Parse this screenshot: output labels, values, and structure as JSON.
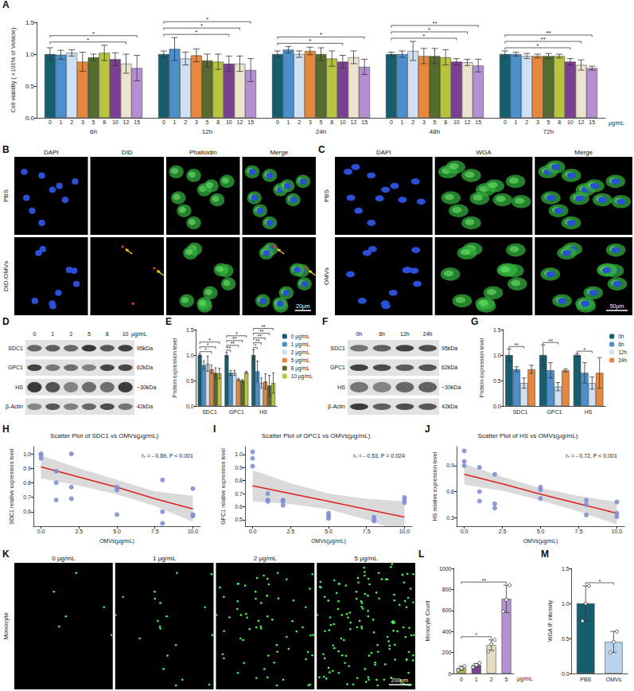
{
  "chart_data": [
    {
      "panel": "A",
      "type": "bar",
      "ylabel": "Cell viability ( ×100% of Vehicle)",
      "categories": [
        "6h",
        "12h",
        "24h",
        "48h",
        "72h"
      ],
      "unit": "μg/mL",
      "ylim": [
        0,
        1.5
      ],
      "yticks": [
        {
          "value": 0,
          "label": "0.0"
        },
        0.5,
        {
          "value": 1,
          "label": "1.0"
        },
        1.5
      ],
      "grid": false,
      "series": [
        {
          "name": "0",
          "color": "#155e6e",
          "values": [
            1.0,
            1.0,
            1.0,
            1.0,
            1.0
          ],
          "errors": [
            0.1,
            0.05,
            0.05,
            0.03,
            0.05
          ]
        },
        {
          "name": "1",
          "color": "#4b8fcc",
          "values": [
            0.99,
            1.08,
            1.07,
            1.0,
            1.0
          ],
          "errors": [
            0.07,
            0.18,
            0.05,
            0.05,
            0.03
          ]
        },
        {
          "name": "2",
          "color": "#cfe0f0",
          "values": [
            1.02,
            0.93,
            1.0,
            1.05,
            0.97
          ],
          "errors": [
            0.05,
            0.1,
            0.05,
            0.15,
            0.04
          ]
        },
        {
          "name": "3",
          "color": "#e8873a",
          "values": [
            0.88,
            0.98,
            1.05,
            0.97,
            0.97
          ],
          "errors": [
            0.15,
            0.1,
            0.06,
            0.12,
            0.03
          ]
        },
        {
          "name": "5",
          "color": "#556b2f",
          "values": [
            0.95,
            0.9,
            1.0,
            0.97,
            0.97
          ],
          "errors": [
            0.05,
            0.1,
            0.1,
            0.12,
            0.04
          ]
        },
        {
          "name": "8",
          "color": "#b8c43c",
          "values": [
            1.02,
            0.88,
            0.93,
            0.95,
            0.97
          ],
          "errors": [
            0.12,
            0.12,
            0.12,
            0.12,
            0.03
          ]
        },
        {
          "name": "10",
          "color": "#7b3f93",
          "values": [
            0.92,
            0.85,
            0.88,
            0.88,
            0.88
          ],
          "errors": [
            0.1,
            0.12,
            0.1,
            0.05,
            0.05
          ]
        },
        {
          "name": "12",
          "color": "#ebe3cc",
          "values": [
            0.85,
            0.85,
            0.95,
            0.87,
            0.83
          ],
          "errors": [
            0.15,
            0.12,
            0.1,
            0.05,
            0.08
          ]
        },
        {
          "name": "15",
          "color": "#b48fd4",
          "values": [
            0.78,
            0.75,
            0.8,
            0.82,
            0.78
          ],
          "errors": [
            0.2,
            0.18,
            0.12,
            0.1,
            0.03
          ]
        }
      ],
      "brackets": [
        {
          "category": "6h",
          "from": "0",
          "to": "12",
          "label": "*"
        },
        {
          "category": "6h",
          "from": "0",
          "to": "15",
          "label": "*"
        },
        {
          "category": "12h",
          "from": "0",
          "to": "10",
          "label": "*"
        },
        {
          "category": "12h",
          "from": "0",
          "to": "12",
          "label": "*"
        },
        {
          "category": "12h",
          "from": "0",
          "to": "15",
          "label": "*"
        },
        {
          "category": "24h",
          "from": "0",
          "to": "10",
          "label": "*"
        },
        {
          "category": "24h",
          "from": "0",
          "to": "15",
          "label": "*"
        },
        {
          "category": "48h",
          "from": "0",
          "to": "10",
          "label": "*"
        },
        {
          "category": "48h",
          "from": "0",
          "to": "12",
          "label": "*"
        },
        {
          "category": "48h",
          "from": "0",
          "to": "15",
          "label": "**"
        },
        {
          "category": "72h",
          "from": "0",
          "to": "10",
          "label": "*"
        },
        {
          "category": "72h",
          "from": "0",
          "to": "12",
          "label": "**"
        },
        {
          "category": "72h",
          "from": "0",
          "to": "15",
          "label": "**"
        }
      ]
    },
    {
      "panel": "E",
      "type": "bar",
      "ylabel": "Protein expression level",
      "categories": [
        "SDC1",
        "GPC1",
        "HS"
      ],
      "legend": "right",
      "ylim": [
        0,
        1.5
      ],
      "yticks": [
        {
          "value": 0,
          "label": "0.0"
        },
        0.5,
        {
          "value": 1,
          "label": "1.0"
        },
        1.5
      ],
      "grid": false,
      "series": [
        {
          "name": "0 μg/mL",
          "color": "#155e6e",
          "values": [
            1.0,
            1.0,
            1.0
          ],
          "errors": [
            0.02,
            0.05,
            0.1
          ]
        },
        {
          "name": "1 μg/mL",
          "color": "#4b8fcc",
          "values": [
            0.8,
            0.65,
            0.68
          ],
          "errors": [
            0.08,
            0.05,
            0.2
          ]
        },
        {
          "name": "2 μg/mL",
          "color": "#cfe0f0",
          "values": [
            0.83,
            0.65,
            0.45
          ],
          "errors": [
            0.15,
            0.05,
            0.1
          ]
        },
        {
          "name": "5 μg/mL",
          "color": "#e8873a",
          "values": [
            0.72,
            0.52,
            0.48
          ],
          "errors": [
            0.08,
            0.02,
            0.15
          ]
        },
        {
          "name": "8 μg/mL",
          "color": "#556b2f",
          "values": [
            0.65,
            0.5,
            0.4
          ],
          "errors": [
            0.1,
            0.02,
            0.2
          ]
        },
        {
          "name": "10 μg/mL",
          "color": "#b8c43c",
          "values": [
            0.64,
            0.66,
            0.45
          ],
          "errors": [
            0.1,
            0.02,
            0.2
          ]
        }
      ],
      "brackets": [
        {
          "category": "SDC1",
          "from": "0 μg/mL",
          "to": "5 μg/mL",
          "label": "*"
        },
        {
          "category": "SDC1",
          "from": "0 μg/mL",
          "to": "8 μg/mL",
          "label": "*"
        },
        {
          "category": "SDC1",
          "from": "0 μg/mL",
          "to": "10 μg/mL",
          "label": "*"
        },
        {
          "category": "GPC1",
          "from": "0 μg/mL",
          "to": "1 μg/mL",
          "label": "**"
        },
        {
          "category": "GPC1",
          "from": "0 μg/mL",
          "to": "5 μg/mL",
          "label": "**"
        },
        {
          "category": "GPC1",
          "from": "0 μg/mL",
          "to": "8 μg/mL",
          "label": "**"
        },
        {
          "category": "GPC1",
          "from": "0 μg/mL",
          "to": "10 μg/mL",
          "label": "*"
        },
        {
          "category": "HS",
          "from": "0 μg/mL",
          "to": "1 μg/mL",
          "label": "*"
        },
        {
          "category": "HS",
          "from": "0 μg/mL",
          "to": "2 μg/mL",
          "label": "**"
        },
        {
          "category": "HS",
          "from": "0 μg/mL",
          "to": "5 μg/mL",
          "label": "**"
        },
        {
          "category": "HS",
          "from": "0 μg/mL",
          "to": "8 μg/mL",
          "label": "**"
        },
        {
          "category": "HS",
          "from": "0 μg/mL",
          "to": "10 μg/mL",
          "label": "**"
        }
      ]
    },
    {
      "panel": "G",
      "type": "bar",
      "ylabel": "Protein expression level",
      "categories": [
        "SDC1",
        "GPC1",
        "HS"
      ],
      "legend": "right",
      "ylim": [
        0,
        1.5
      ],
      "yticks": [
        {
          "value": 0,
          "label": "0.0"
        },
        0.5,
        {
          "value": 1,
          "label": "1.0"
        },
        1.5
      ],
      "grid": false,
      "series": [
        {
          "name": "0h",
          "color": "#155e6e",
          "values": [
            1.0,
            1.0,
            1.0
          ],
          "errors": [
            0.12,
            0.2,
            0.03
          ]
        },
        {
          "name": "6h",
          "color": "#4b8fcc",
          "values": [
            0.72,
            0.7,
            0.65
          ],
          "errors": [
            0.05,
            0.15,
            0.2
          ]
        },
        {
          "name": "12h",
          "color": "#cfe0f0",
          "values": [
            0.45,
            0.38,
            0.45
          ],
          "errors": [
            0.1,
            0.08,
            0.12
          ]
        },
        {
          "name": "24h",
          "color": "#e8873a",
          "values": [
            0.72,
            0.7,
            0.65
          ],
          "errors": [
            0.08,
            0.03,
            0.3
          ]
        }
      ],
      "brackets": [
        {
          "category": "SDC1",
          "from": "0h",
          "to": "12h",
          "label": "**"
        },
        {
          "category": "GPC1",
          "from": "0h",
          "to": "12h",
          "label": "**"
        },
        {
          "category": "HS",
          "from": "0h",
          "to": "12h",
          "label": "*"
        }
      ]
    },
    {
      "panel": "H",
      "type": "scatter",
      "title": "Scatter Plot of SDC1 vs OMVs(μg/mL)",
      "xlabel": "OMVs(μg/mL)",
      "ylabel": "SDC1 relative expression level",
      "annotation": "rₛ = - 0.69, P < 0.001",
      "color": "#7d8fd8",
      "grid": false,
      "x": [
        0,
        0,
        0,
        1,
        1,
        1,
        2,
        2,
        2,
        5,
        5,
        5,
        8,
        8,
        8,
        10,
        10,
        10
      ],
      "y": [
        1.0,
        0.99,
        0.97,
        0.88,
        0.8,
        0.68,
        1.0,
        0.77,
        0.69,
        0.77,
        0.75,
        0.58,
        0.82,
        0.6,
        0.52,
        0.76,
        0.58,
        0.57
      ],
      "fit": {
        "x": [
          0,
          2.5,
          5,
          7.5,
          10
        ],
        "y": [
          0.91,
          0.84,
          0.77,
          0.69,
          0.62
        ],
        "ci_lower": [
          0.83,
          0.78,
          0.72,
          0.64,
          0.53
        ],
        "ci_upper": [
          0.99,
          0.9,
          0.82,
          0.74,
          0.71
        ],
        "color": "#e02020"
      },
      "xlim": [
        -0.5,
        10.5
      ],
      "xticks": [
        {
          "value": 0,
          "label": "0.0"
        },
        2.5,
        {
          "value": 5,
          "label": "5.0"
        },
        7.5,
        {
          "value": 10,
          "label": "10.0"
        }
      ],
      "ylim": [
        0.5,
        1.05
      ],
      "yticks": [
        0.6,
        0.7,
        0.8,
        0.9,
        {
          "value": 1,
          "label": "1.0"
        }
      ]
    },
    {
      "panel": "I",
      "type": "scatter",
      "title": "Scatter Plot of GPC1 vs OMVs(μg/mL)",
      "xlabel": "OMVs(μg/mL)",
      "ylabel": "GPC1 relative expression level",
      "annotation": "rₛ = - 0.53, P = 0.024",
      "color": "#7d8fd8",
      "grid": false,
      "x": [
        0,
        0,
        0,
        1,
        1,
        1,
        2,
        2,
        2,
        5,
        5,
        5,
        8,
        8,
        8,
        10,
        10,
        10
      ],
      "y": [
        1.02,
        0.97,
        0.91,
        0.7,
        0.65,
        0.64,
        0.65,
        0.64,
        0.61,
        0.55,
        0.53,
        0.51,
        0.52,
        0.5,
        0.49,
        0.67,
        0.65,
        0.63
      ],
      "fit": {
        "x": [
          0,
          2.5,
          5,
          7.5,
          10
        ],
        "y": [
          0.76,
          0.7,
          0.64,
          0.58,
          0.52
        ],
        "ci_lower": [
          0.64,
          0.62,
          0.58,
          0.5,
          0.4
        ],
        "ci_upper": [
          0.88,
          0.78,
          0.7,
          0.66,
          0.64
        ],
        "color": "#e02020"
      },
      "xlim": [
        -0.5,
        10.5
      ],
      "xticks": [
        {
          "value": 0,
          "label": "0.0"
        },
        2.5,
        {
          "value": 5,
          "label": "5.0"
        },
        7.5,
        {
          "value": 10,
          "label": "10.0"
        }
      ],
      "ylim": [
        0.45,
        1.06
      ],
      "yticks": [
        0.5,
        0.6,
        0.7,
        0.8,
        0.9,
        {
          "value": 1,
          "label": "1.0"
        }
      ]
    },
    {
      "panel": "J",
      "type": "scatter",
      "title": "Scatter Plot of HS vs OMVs(μg/mL)",
      "xlabel": "OMVs(μg/mL)",
      "ylabel": "HS relative expression level",
      "annotation": "rₛ = - 0.72, P < 0.001",
      "color": "#7d8fd8",
      "grid": false,
      "x": [
        0,
        0,
        0,
        1,
        1,
        1,
        2,
        2,
        2,
        5,
        5,
        5,
        8,
        8,
        8,
        10,
        10,
        10
      ],
      "y": [
        1.07,
        0.95,
        0.9,
        0.88,
        0.6,
        0.49,
        0.8,
        0.46,
        0.41,
        0.65,
        0.62,
        0.52,
        0.5,
        0.45,
        0.33,
        0.48,
        0.35,
        0.31
      ],
      "fit": {
        "x": [
          0,
          2.5,
          5,
          7.5,
          10
        ],
        "y": [
          0.8,
          0.69,
          0.57,
          0.46,
          0.35
        ],
        "ci_lower": [
          0.68,
          0.61,
          0.5,
          0.37,
          0.22
        ],
        "ci_upper": [
          0.92,
          0.77,
          0.64,
          0.55,
          0.48
        ],
        "color": "#e02020"
      },
      "xlim": [
        -0.5,
        10.5
      ],
      "xticks": [
        {
          "value": 0,
          "label": "0.0"
        },
        2.5,
        {
          "value": 5,
          "label": "5.0"
        },
        7.5,
        {
          "value": 10,
          "label": "10.0"
        }
      ],
      "ylim": [
        0.2,
        1.12
      ],
      "yticks": [
        0.3,
        0.6,
        0.9
      ]
    },
    {
      "panel": "L",
      "type": "bar",
      "ylabel": "Monocyte Count",
      "categories": [
        "0",
        "1",
        "2",
        "5"
      ],
      "unit": "μg/mL",
      "values": [
        50,
        80,
        270,
        710
      ],
      "errors": [
        20,
        15,
        50,
        130
      ],
      "points": [
        [
          30,
          50,
          70
        ],
        [
          60,
          80,
          100
        ],
        [
          210,
          280,
          320
        ],
        [
          590,
          700,
          840
        ]
      ],
      "colors": [
        "#b5b84a",
        "#7b3f93",
        "#e3dcc0",
        "#b48fd4"
      ],
      "ylim": [
        0,
        1000
      ],
      "yticks": [
        0,
        200,
        400,
        600,
        800,
        1000
      ],
      "grid": false,
      "brackets": [
        {
          "from": "0",
          "to": "2",
          "label": "*"
        },
        {
          "from": "0",
          "to": "5",
          "label": "**"
        }
      ]
    },
    {
      "panel": "M",
      "type": "bar",
      "ylabel": "WGA IF intensity",
      "categories": [
        "PBS",
        "OMVs"
      ],
      "values": [
        1.0,
        0.45
      ],
      "errors": [
        0.25,
        0.15
      ],
      "points": [
        [
          0.75,
          1.0,
          1.25
        ],
        [
          0.3,
          0.45,
          0.6
        ]
      ],
      "colors": [
        "#155e6e",
        "#b9d3ec"
      ],
      "ylim": [
        0,
        1.5
      ],
      "yticks": [
        {
          "value": 0,
          "label": "0.0"
        },
        0.5,
        {
          "value": 1,
          "label": "1.0"
        },
        1.5
      ],
      "grid": false,
      "brackets": [
        {
          "from": "PBS",
          "to": "OMVs",
          "label": "*"
        }
      ]
    }
  ],
  "image_panels": [
    {
      "panel": "B",
      "type": "micrograph",
      "columns": [
        "DAPI",
        "DID",
        "Phalloidin",
        "Merge"
      ],
      "rows": [
        "PBS",
        "DID-OMVs"
      ],
      "scale_bar": "20μm"
    },
    {
      "panel": "C",
      "type": "micrograph",
      "columns": [
        "DAPI",
        "WGA",
        "Merge"
      ],
      "rows": [
        "PBS",
        "OMVs"
      ],
      "scale_bar": "50μm"
    },
    {
      "panel": "D",
      "type": "western_blot",
      "lanes": [
        "0",
        "1",
        "2",
        "5",
        "8",
        "10"
      ],
      "unit": "μg/mL",
      "bands": [
        {
          "name": "SDC1",
          "size": "95kDa"
        },
        {
          "name": "GPC1",
          "size": "62kDa"
        },
        {
          "name": "HS",
          "size": "~30kDa"
        },
        {
          "name": "β-Actin",
          "size": "42kDa"
        }
      ]
    },
    {
      "panel": "F",
      "type": "western_blot",
      "lanes": [
        "0h",
        "6h",
        "12h",
        "24h"
      ],
      "bands": [
        {
          "name": "SDC1",
          "size": "95kDa"
        },
        {
          "name": "GPC1",
          "size": "62kDa"
        },
        {
          "name": "HS",
          "size": "~30kDa"
        },
        {
          "name": "β-Actin",
          "size": "42kDa"
        }
      ]
    },
    {
      "panel": "K",
      "type": "micrograph",
      "columns": [
        "0 μg/mL",
        "1 μg/mL",
        "2 μg/mL",
        "5 μg/mL"
      ],
      "rows": [
        "Monocyte"
      ],
      "scale_bar": "200μm"
    }
  ]
}
